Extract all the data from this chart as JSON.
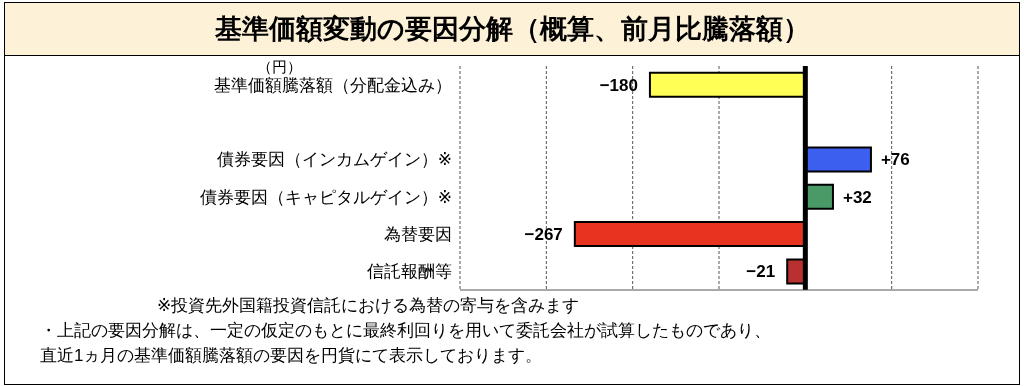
{
  "chart_data": {
    "type": "bar",
    "orientation": "horizontal",
    "title": "基準価額変動の要因分解（概算、前月比騰落額）",
    "categories": [
      "基準価額騰落額（分配金込み）",
      null,
      "債券要因（インカムゲイン）※",
      "債券要因（キャピタルゲイン）※",
      "為替要因",
      "信託報酬等"
    ],
    "values": [
      -180,
      null,
      76,
      32,
      -267,
      -21
    ],
    "value_labels": [
      "−180",
      null,
      "+76",
      "+32",
      "−267",
      "−21"
    ],
    "colors": [
      "#ffff55",
      "#ffffff",
      "#3d5ff0",
      "#4a9a68",
      "#e8341f",
      "#b83030"
    ],
    "xlim": [
      -400,
      200
    ],
    "xticks": [
      {
        "value": -400,
        "label": null
      },
      {
        "value": -300,
        "label": null
      },
      {
        "value": -200,
        "label": null
      },
      {
        "value": -100,
        "label": null
      },
      {
        "value": 0,
        "label": null
      },
      {
        "value": 100,
        "label": null
      },
      {
        "value": 200,
        "label": null
      }
    ],
    "grid": "x",
    "ref_lines": [
      {
        "axis": "x",
        "value": 0,
        "color": "#000000"
      }
    ],
    "annotations": [
      "（円）",
      "※投資先外国籍投資信託における為替の寄与を含みます",
      "・上記の要因分解は、一定の仮定のもとに最終利回りを用いて委託会社が試算したものであり、直近1ヵ月の基準価額騰落額の要因を円貨にて表示しております。"
    ]
  }
}
